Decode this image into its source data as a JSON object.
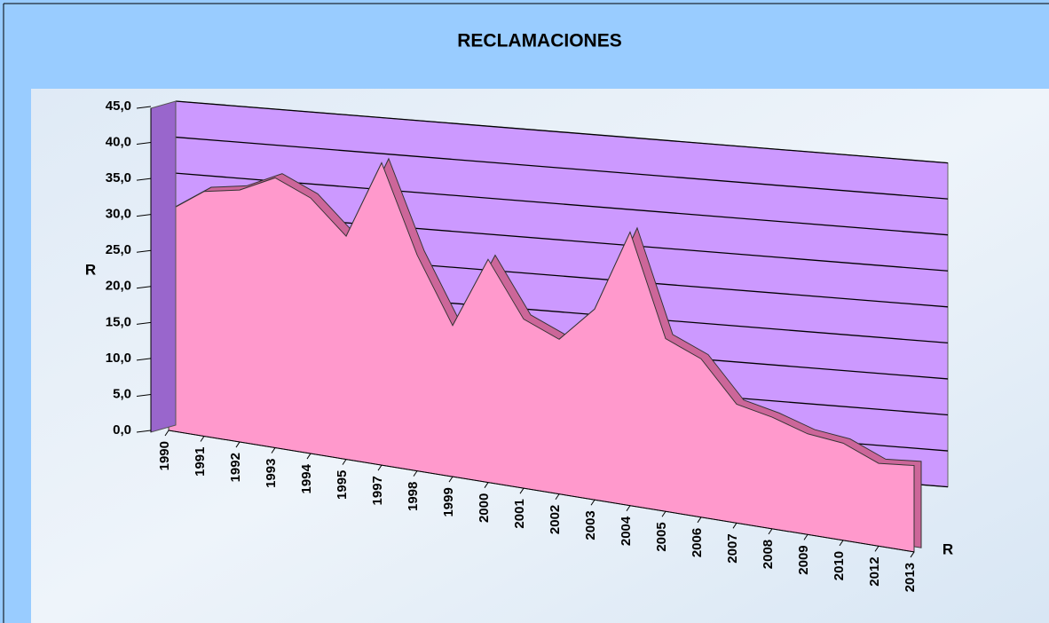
{
  "chart_data": {
    "type": "area",
    "title": "RECLAMACIONES",
    "y_axis_label": "R",
    "series_axis_label": "R",
    "categories": [
      "1990",
      "1991",
      "1992",
      "1993",
      "1994",
      "1995",
      "1997",
      "1998",
      "1999",
      "2000",
      "2001",
      "2002",
      "2003",
      "2004",
      "2005",
      "2006",
      "2007",
      "2008",
      "2009",
      "2010",
      "2012",
      "2013"
    ],
    "series": [
      {
        "name": "R",
        "color": "#ff99cc",
        "values": [
          30.5,
          34,
          35,
          37.5,
          35.5,
          31,
          42,
          30,
          21,
          31,
          23.5,
          21.5,
          26.5,
          38,
          24,
          22,
          16.5,
          15.5,
          14,
          13.5,
          11.5,
          12
        ]
      }
    ],
    "ylim": [
      0,
      45
    ],
    "yticks": [
      {
        "value": 0,
        "label": "0,0"
      },
      {
        "value": 5,
        "label": "5,0"
      },
      {
        "value": 10,
        "label": "10,0"
      },
      {
        "value": 15,
        "label": "15,0"
      },
      {
        "value": 20,
        "label": "20,0"
      },
      {
        "value": 25,
        "label": "25,0"
      },
      {
        "value": 30,
        "label": "30,0"
      },
      {
        "value": 35,
        "label": "35,0"
      },
      {
        "value": 40,
        "label": "40,0"
      },
      {
        "value": 45,
        "label": "45,0"
      }
    ],
    "grid": true,
    "wall_color": "#cc99ff"
  }
}
